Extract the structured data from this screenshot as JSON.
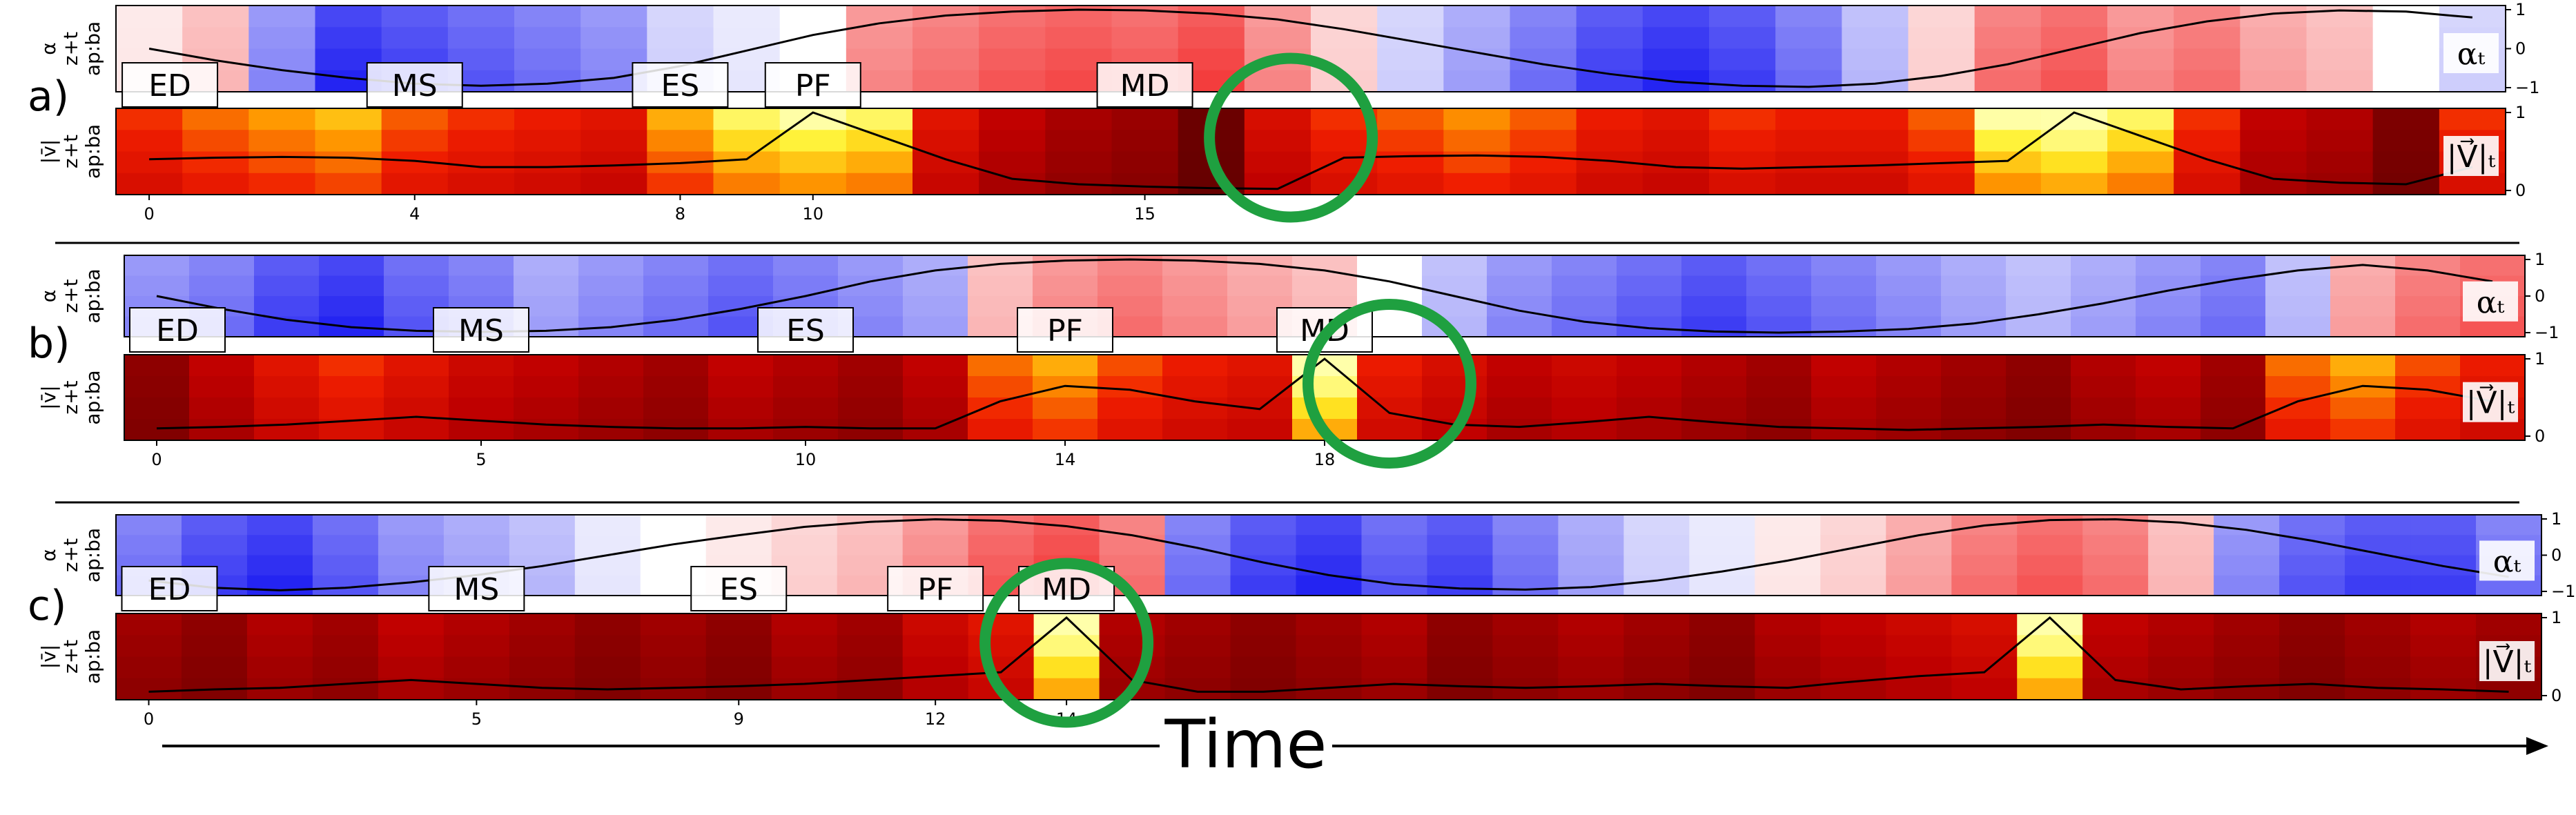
{
  "chart_data": [
    {
      "type": "heatmap",
      "panel_label": "a)",
      "n_frames": 36,
      "alpha": {
        "ylabel_lines": [
          "α",
          "z+t",
          "ap:ba"
        ],
        "yticks": [
          "1",
          "0",
          "−1"
        ],
        "ylim": [
          -1,
          1
        ],
        "legend": "αₜ",
        "cells": [
          0.1,
          0.3,
          -0.5,
          -0.9,
          -0.8,
          -0.7,
          -0.6,
          -0.5,
          -0.2,
          -0.1,
          0.0,
          0.5,
          0.6,
          0.7,
          0.75,
          0.7,
          0.8,
          0.5,
          0.2,
          -0.2,
          -0.4,
          -0.6,
          -0.8,
          -0.9,
          -0.8,
          -0.6,
          -0.3,
          0.2,
          0.6,
          0.7,
          0.5,
          0.6,
          0.4,
          0.3,
          0.0,
          -0.2
        ],
        "line": [
          0.0,
          -0.3,
          -0.55,
          -0.75,
          -0.9,
          -0.95,
          -0.9,
          -0.75,
          -0.45,
          -0.05,
          0.35,
          0.65,
          0.85,
          0.95,
          1.0,
          0.98,
          0.9,
          0.75,
          0.5,
          0.2,
          -0.1,
          -0.4,
          -0.65,
          -0.85,
          -0.95,
          -0.98,
          -0.9,
          -0.7,
          -0.4,
          0.0,
          0.4,
          0.7,
          0.9,
          0.98,
          0.95,
          0.8
        ]
      },
      "velocity": {
        "ylabel_lines": [
          "|v̄|",
          "z+t",
          "ap:ba"
        ],
        "yticks": [
          "1",
          "0"
        ],
        "ylim": [
          0,
          1
        ],
        "legend": "|V⃗|ₜ",
        "cells": [
          0.55,
          0.65,
          0.72,
          0.78,
          0.62,
          0.55,
          0.5,
          0.45,
          0.75,
          0.9,
          0.95,
          0.9,
          0.45,
          0.3,
          0.22,
          0.18,
          0.05,
          0.4,
          0.55,
          0.62,
          0.7,
          0.62,
          0.5,
          0.45,
          0.55,
          0.5,
          0.5,
          0.62,
          0.95,
          1.0,
          0.9,
          0.55,
          0.3,
          0.25,
          0.1,
          0.55
        ],
        "line": [
          0.4,
          0.42,
          0.43,
          0.42,
          0.38,
          0.3,
          0.3,
          0.32,
          0.35,
          0.4,
          1.0,
          0.7,
          0.4,
          0.15,
          0.08,
          0.05,
          0.03,
          0.02,
          0.42,
          0.44,
          0.45,
          0.43,
          0.38,
          0.3,
          0.28,
          0.3,
          0.32,
          0.35,
          0.38,
          1.0,
          0.7,
          0.4,
          0.15,
          0.1,
          0.08,
          0.3
        ]
      },
      "phases": [
        {
          "label": "ED",
          "x": 0
        },
        {
          "label": "MS",
          "x": 4
        },
        {
          "label": "ES",
          "x": 8
        },
        {
          "label": "PF",
          "x": 10
        },
        {
          "label": "MD",
          "x": 15
        }
      ],
      "xticks": [
        0,
        4,
        8,
        10,
        15
      ],
      "highlight_x": 17.2,
      "highlight_color": "#1fa040"
    },
    {
      "type": "heatmap",
      "panel_label": "b)",
      "n_frames": 37,
      "alpha": {
        "ylabel_lines": [
          "α",
          "z+t",
          "ap:ba"
        ],
        "yticks": [
          "1",
          "0",
          "−1"
        ],
        "ylim": [
          -1,
          1
        ],
        "legend": "αₜ",
        "cells": [
          -0.5,
          -0.6,
          -0.8,
          -0.9,
          -0.7,
          -0.6,
          -0.4,
          -0.5,
          -0.6,
          -0.7,
          -0.6,
          -0.5,
          -0.4,
          0.3,
          0.5,
          0.6,
          0.5,
          0.4,
          0.3,
          0.0,
          -0.3,
          -0.5,
          -0.6,
          -0.7,
          -0.8,
          -0.7,
          -0.6,
          -0.5,
          -0.4,
          -0.3,
          -0.4,
          -0.5,
          -0.6,
          -0.3,
          0.4,
          0.6,
          0.7
        ],
        "line": [
          0.0,
          -0.35,
          -0.65,
          -0.85,
          -0.95,
          -0.98,
          -0.95,
          -0.85,
          -0.65,
          -0.35,
          0.0,
          0.4,
          0.7,
          0.88,
          0.97,
          1.0,
          0.97,
          0.88,
          0.7,
          0.4,
          0.0,
          -0.4,
          -0.7,
          -0.88,
          -0.97,
          -1.0,
          -0.97,
          -0.9,
          -0.75,
          -0.5,
          -0.2,
          0.15,
          0.45,
          0.7,
          0.85,
          0.7,
          0.4
        ]
      },
      "velocity": {
        "ylabel_lines": [
          "|v̄|",
          "z+t",
          "ap:ba"
        ],
        "yticks": [
          "1",
          "0"
        ],
        "ylim": [
          0,
          1
        ],
        "legend": "|V⃗|ₜ",
        "cells": [
          0.15,
          0.3,
          0.45,
          0.55,
          0.45,
          0.35,
          0.3,
          0.25,
          0.2,
          0.3,
          0.25,
          0.2,
          0.3,
          0.65,
          0.75,
          0.6,
          0.5,
          0.45,
          1.0,
          0.5,
          0.4,
          0.3,
          0.35,
          0.3,
          0.25,
          0.2,
          0.3,
          0.25,
          0.2,
          0.15,
          0.25,
          0.3,
          0.2,
          0.65,
          0.75,
          0.6,
          0.5
        ],
        "line": [
          0.1,
          0.12,
          0.15,
          0.2,
          0.25,
          0.2,
          0.15,
          0.12,
          0.1,
          0.1,
          0.12,
          0.1,
          0.1,
          0.45,
          0.65,
          0.6,
          0.45,
          0.35,
          1.0,
          0.3,
          0.15,
          0.12,
          0.18,
          0.25,
          0.18,
          0.12,
          0.1,
          0.08,
          0.1,
          0.12,
          0.15,
          0.12,
          0.1,
          0.45,
          0.65,
          0.6,
          0.45
        ]
      },
      "phases": [
        {
          "label": "ED",
          "x": 0
        },
        {
          "label": "MS",
          "x": 5
        },
        {
          "label": "ES",
          "x": 10
        },
        {
          "label": "PF",
          "x": 14
        },
        {
          "label": "MD",
          "x": 18
        }
      ],
      "xticks": [
        0,
        5,
        10,
        14,
        18
      ],
      "highlight_x": 19,
      "highlight_color": "#1fa040"
    },
    {
      "type": "heatmap",
      "panel_label": "c)",
      "n_frames": 37,
      "alpha": {
        "ylabel_lines": [
          "α",
          "z+t",
          "ap:ba"
        ],
        "yticks": [
          "1",
          "0",
          "−1"
        ],
        "ylim": [
          -1,
          1
        ],
        "legend": "αₜ",
        "cells": [
          -0.6,
          -0.8,
          -0.9,
          -0.7,
          -0.5,
          -0.4,
          -0.3,
          -0.1,
          0.0,
          0.1,
          0.2,
          0.3,
          0.5,
          0.7,
          0.8,
          0.6,
          -0.6,
          -0.8,
          -0.9,
          -0.7,
          -0.8,
          -0.6,
          -0.4,
          -0.2,
          -0.1,
          0.1,
          0.2,
          0.4,
          0.6,
          0.7,
          0.6,
          0.3,
          -0.5,
          -0.7,
          -0.8,
          -0.8,
          -0.6
        ],
        "line": [
          -0.7,
          -0.9,
          -0.97,
          -0.9,
          -0.75,
          -0.55,
          -0.3,
          0.0,
          0.3,
          0.55,
          0.78,
          0.92,
          0.99,
          0.95,
          0.8,
          0.55,
          0.2,
          -0.2,
          -0.55,
          -0.8,
          -0.92,
          -0.95,
          -0.88,
          -0.7,
          -0.45,
          -0.15,
          0.2,
          0.55,
          0.82,
          0.97,
          0.99,
          0.9,
          0.7,
          0.4,
          0.05,
          -0.3,
          -0.6
        ]
      },
      "velocity": {
        "ylabel_lines": [
          "|v̄|",
          "z+t",
          "ap:ba"
        ],
        "yticks": [
          "1",
          "0"
        ],
        "ylim": [
          0,
          1
        ],
        "legend": "|V⃗|ₜ",
        "cells": [
          0.2,
          0.15,
          0.25,
          0.2,
          0.3,
          0.25,
          0.2,
          0.15,
          0.2,
          0.15,
          0.25,
          0.2,
          0.35,
          0.45,
          1.0,
          0.25,
          0.2,
          0.15,
          0.2,
          0.25,
          0.15,
          0.2,
          0.25,
          0.2,
          0.15,
          0.25,
          0.3,
          0.35,
          0.4,
          1.0,
          0.3,
          0.25,
          0.2,
          0.15,
          0.2,
          0.25,
          0.2
        ],
        "line": [
          0.05,
          0.08,
          0.1,
          0.15,
          0.2,
          0.15,
          0.1,
          0.08,
          0.1,
          0.12,
          0.15,
          0.2,
          0.25,
          0.3,
          1.0,
          0.2,
          0.05,
          0.05,
          0.1,
          0.15,
          0.12,
          0.1,
          0.12,
          0.15,
          0.12,
          0.1,
          0.18,
          0.25,
          0.3,
          1.0,
          0.2,
          0.08,
          0.12,
          0.15,
          0.1,
          0.08,
          0.05
        ]
      },
      "phases": [
        {
          "label": "ED",
          "x": 0
        },
        {
          "label": "MS",
          "x": 5
        },
        {
          "label": "ES",
          "x": 9
        },
        {
          "label": "PF",
          "x": 12
        },
        {
          "label": "MD",
          "x": 14
        }
      ],
      "xticks": [
        0,
        5,
        9,
        12,
        14
      ],
      "highlight_x": 14,
      "highlight_color": "#1fa040"
    }
  ],
  "time_axis": {
    "label": "Time"
  }
}
